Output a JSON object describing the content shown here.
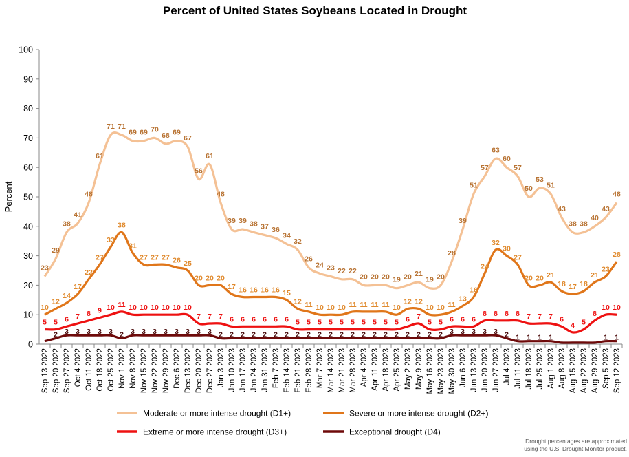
{
  "chart_data": {
    "type": "line",
    "title": "Percent of United States Soybeans Located in Drought",
    "ylabel": "Percent",
    "xlabel": "",
    "ylim": [
      0,
      100
    ],
    "yticks": [
      "0",
      "10",
      "20",
      "30",
      "40",
      "50",
      "60",
      "70",
      "80",
      "90",
      "100"
    ],
    "grid": false,
    "legend_position": "bottom",
    "categories": [
      "Sep 13 2022",
      "Sep 20 2022",
      "Sep 27 2022",
      "Oct 4 2022",
      "Oct 11 2022",
      "Oct 18 2022",
      "Oct 25 2022",
      "Nov 1 2022",
      "Nov 8 2022",
      "Nov 15 2022",
      "Nov 22 2022",
      "Nov 29 2022",
      "Dec 6 2022",
      "Dec 13 2022",
      "Dec 20 2022",
      "Dec 27 2022",
      "Jan 3 2023",
      "Jan 10 2023",
      "Jan 17 2023",
      "Jan 24 2023",
      "Jan 31 2023",
      "Feb 7 2023",
      "Feb 14 2023",
      "Feb 21 2023",
      "Feb 28 2023",
      "Mar 7 2023",
      "Mar 14 2023",
      "Mar 21 2023",
      "Mar 28 2023",
      "Apr 4 2023",
      "Apr 11 2023",
      "Apr 18 2023",
      "Apr 25 2023",
      "May 2 2023",
      "May 9 2023",
      "May 16 2023",
      "May 23 2023",
      "May 30 2023",
      "Jun 6 2023",
      "Jun 13 2023",
      "Jun 20 2023",
      "Jun 27 2023",
      "Jul 4 2023",
      "Jul 11 2023",
      "Jul 18 2023",
      "Jul 25 2023",
      "Aug 1 2023",
      "Aug 8 2023",
      "Aug 15 2023",
      "Aug 22 2023",
      "Aug 29 2023",
      "Sep 5 2023",
      "Sep 12 2023"
    ],
    "series": [
      {
        "name": "Moderate or more intense drought (D1+)",
        "color": "#F4C195",
        "label_color": "#B87333",
        "values": [
          23,
          29,
          38,
          41,
          48,
          61,
          71,
          71,
          69,
          69,
          70,
          68,
          69,
          67,
          56,
          61,
          48,
          39,
          39,
          38,
          37,
          36,
          34,
          32,
          26,
          24,
          23,
          22,
          22,
          20,
          20,
          20,
          19,
          20,
          21,
          19,
          20,
          28,
          39,
          51,
          57,
          63,
          60,
          57,
          50,
          53,
          51,
          43,
          38,
          38,
          40,
          43,
          48
        ],
        "labels": [
          "23",
          "29",
          "38",
          "41",
          "48",
          "61",
          "71",
          "71",
          "69",
          "69",
          "70",
          "68",
          "69",
          "67",
          "56",
          "61",
          "48",
          "39",
          "39",
          "38",
          "37",
          "36",
          "34",
          "32",
          "26",
          "24",
          "23",
          "22",
          "22",
          "20",
          "20",
          "20",
          "19",
          "20",
          "21",
          "19",
          "20",
          "28",
          "39",
          "51",
          "57",
          "63",
          "60",
          "57",
          "50",
          "53",
          "51",
          "43",
          "38",
          "38",
          "40",
          "43",
          "48"
        ]
      },
      {
        "name": "Severe or more intense drought (D2+)",
        "color": "#E0761A",
        "label_color": "#E08A2E",
        "values": [
          10,
          12,
          14,
          17,
          22,
          27,
          33,
          38,
          31,
          27,
          27,
          27,
          26,
          25,
          20,
          20,
          20,
          17,
          16,
          16,
          16,
          16,
          15,
          12,
          11,
          10,
          10,
          10,
          11,
          11,
          11,
          11,
          10,
          12,
          12,
          10,
          10,
          11,
          13,
          16,
          24,
          32,
          30,
          27,
          20,
          20,
          21,
          18,
          17,
          18,
          21,
          23,
          28
        ],
        "labels": [
          "10",
          "12",
          "14",
          "17",
          "22",
          "27",
          "33",
          "38",
          "31",
          "27",
          "27",
          "27",
          "26",
          "25",
          "20",
          "20",
          "20",
          "17",
          "16",
          "16",
          "16",
          "16",
          "15",
          "12",
          "11",
          "10",
          "10",
          "10",
          "11",
          "11",
          "11",
          "11",
          "10",
          "12",
          "12",
          "10",
          "10",
          "11",
          "13",
          "16",
          "24",
          "32",
          "30",
          "27",
          "20",
          "20",
          "21",
          "18",
          "17",
          "18",
          "21",
          "23",
          "28"
        ]
      },
      {
        "name": "Extreme or more intense drought (D3+)",
        "color": "#EE1111",
        "label_color": "#EE1111",
        "values": [
          5,
          5,
          6,
          7,
          8,
          9,
          10,
          11,
          10,
          10,
          10,
          10,
          10,
          10,
          7,
          7,
          7,
          6,
          6,
          6,
          6,
          6,
          6,
          5,
          5,
          5,
          5,
          5,
          5,
          5,
          5,
          5,
          5,
          6,
          7,
          5,
          5,
          6,
          6,
          6,
          8,
          8,
          8,
          8,
          7,
          7,
          7,
          6,
          4,
          5,
          8,
          10,
          10
        ],
        "labels": [
          "5",
          "5",
          "6",
          "7",
          "8",
          "9",
          "10",
          "11",
          "10",
          "10",
          "10",
          "10",
          "10",
          "10",
          "7",
          "7",
          "7",
          "6",
          "6",
          "6",
          "6",
          "6",
          "6",
          "5",
          "5",
          "5",
          "5",
          "5",
          "5",
          "5",
          "5",
          "5",
          "5",
          "6",
          "7",
          "5",
          "5",
          "6",
          "6",
          "6",
          "8",
          "8",
          "8",
          "8",
          "7",
          "7",
          "7",
          "6",
          "4",
          "5",
          "8",
          "10",
          "10"
        ]
      },
      {
        "name": "Exceptional drought (D4)",
        "color": "#6E0A0A",
        "label_color": "#4A0A0A",
        "values": [
          1,
          2,
          3,
          3,
          3,
          3,
          3,
          2,
          3,
          3,
          3,
          3,
          3,
          3,
          3,
          3,
          2,
          2,
          2,
          2,
          2,
          2,
          2,
          2,
          2,
          2,
          2,
          2,
          2,
          2,
          2,
          2,
          2,
          2,
          2,
          2,
          2,
          3,
          3,
          3,
          3,
          3,
          2,
          1,
          1,
          1,
          1,
          0.5,
          0.5,
          0.5,
          0.5,
          1,
          1
        ],
        "labels": [
          "",
          "2",
          "3",
          "3",
          "3",
          "3",
          "3",
          "2",
          "3",
          "3",
          "3",
          "3",
          "3",
          "3",
          "3",
          "3",
          "2",
          "2",
          "2",
          "2",
          "2",
          "2",
          "2",
          "2",
          "2",
          "2",
          "2",
          "2",
          "2",
          "2",
          "2",
          "2",
          "2",
          "2",
          "2",
          "2",
          "2",
          "3",
          "3",
          "3",
          "3",
          "3",
          "2",
          "1",
          "1",
          "1",
          "1",
          "",
          "",
          "",
          "",
          "1",
          "1"
        ]
      }
    ],
    "note": [
      "Drought percentages are approximated",
      "using the U.S. Drought Monitor product."
    ]
  }
}
